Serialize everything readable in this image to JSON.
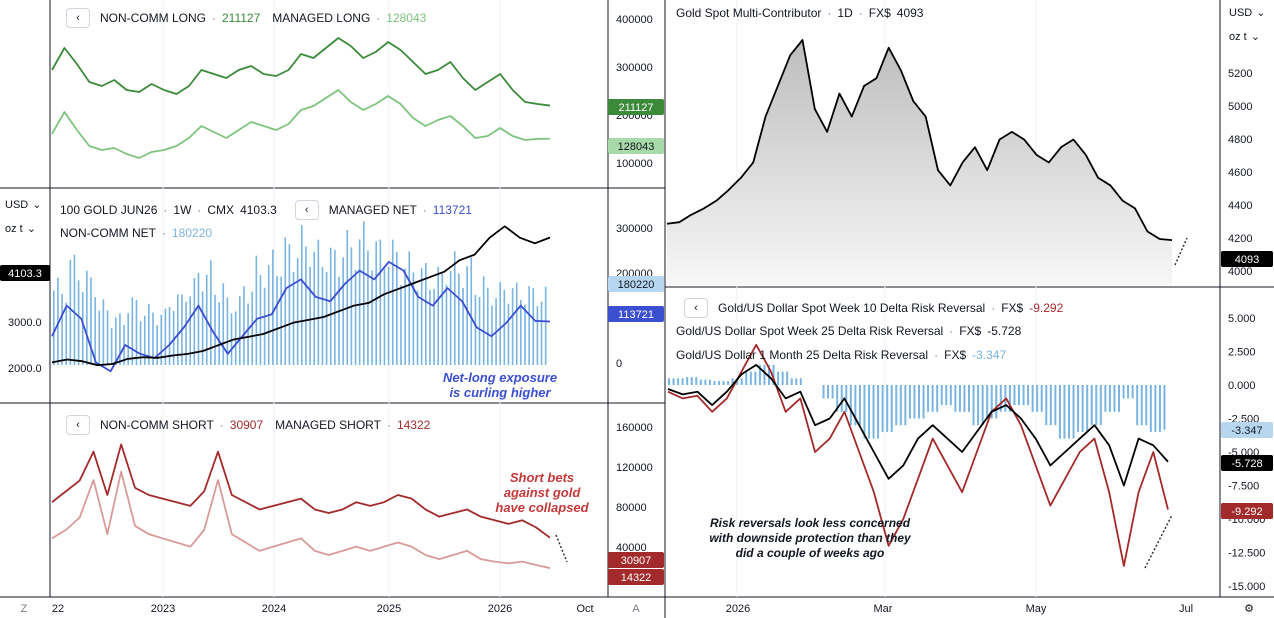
{
  "colors": {
    "dark_green": "#3a8a3a",
    "light_green": "#7dc47d",
    "blue": "#3b4fd1",
    "light_blue": "#7ab4e0",
    "dark_red": "#a32a2a",
    "light_red": "#d99a9a",
    "black": "#000000"
  },
  "units": {
    "currency": "USD",
    "weight": "oz t"
  },
  "panel_long": {
    "legend": {
      "label1": "NON-COMM LONG",
      "value1": "211127",
      "label2": "MANAGED LONG",
      "value2": "128043"
    },
    "badge1": "211127",
    "badge2": "128043",
    "axis_ticks": [
      "400000",
      "300000",
      "200000",
      "100000"
    ]
  },
  "panel_price": {
    "legend": {
      "symbol": "100 GOLD JUN26",
      "interval": "1W",
      "exchange": "CMX",
      "price": "4103.3",
      "label1": "MANAGED NET",
      "value1": "113721",
      "label2": "NON-COMM NET",
      "value2": "180220"
    },
    "price_badge": "4103.3",
    "badge1": "180220",
    "badge2": "113721",
    "left_ticks": [
      "3000.0",
      "2000.0"
    ],
    "right_ticks": [
      "300000",
      "200000",
      "100000",
      "0"
    ],
    "annotation_line1": "Net-long exposure",
    "annotation_line2": "is curling higher"
  },
  "panel_short": {
    "legend": {
      "label1": "NON-COMM SHORT",
      "value1": "30907",
      "label2": "MANAGED SHORT",
      "value2": "14322"
    },
    "badge1": "30907",
    "badge2": "14322",
    "axis_ticks": [
      "160000",
      "120000",
      "80000",
      "40000"
    ],
    "annotation_line1": "Short bets",
    "annotation_line2": "against gold",
    "annotation_line3": "have collapsed",
    "x_ticks": [
      "22",
      "2023",
      "2024",
      "2025",
      "2026",
      "Oct"
    ]
  },
  "panel_spot": {
    "legend": {
      "name": "Gold Spot Multi-Contributor",
      "interval": "1D",
      "exchange": "FX$",
      "value": "4093"
    },
    "badge": "4093",
    "axis_ticks": [
      "5200",
      "5000",
      "4800",
      "4600",
      "4400",
      "4200",
      "4000"
    ]
  },
  "panel_rr": {
    "legend1": {
      "name": "Gold/US Dollar Spot Week 10 Delta Risk Reversal",
      "exchange": "FX$",
      "value": "-9.292"
    },
    "legend2": {
      "name": "Gold/US Dollar Spot Week 25 Delta Risk Reversal",
      "exchange": "FX$",
      "value": "-5.728"
    },
    "legend3": {
      "name": "Gold/US Dollar 1 Month 25 Delta Risk Reversal",
      "exchange": "FX$",
      "value": "-3.347"
    },
    "badge1": "-3.347",
    "badge2": "-5.728",
    "badge3": "-9.292",
    "axis_ticks": [
      "5.000",
      "2.500",
      "0.000",
      "-2.500",
      "-5.000",
      "-7.500",
      "-10.000",
      "-12.500",
      "-15.000"
    ],
    "annotation_line1": "Risk reversals look less concerned",
    "annotation_line2": "with downside protection than they",
    "annotation_line3": "did a couple of weeks ago",
    "x_ticks": [
      "2026",
      "Mar",
      "May",
      "Jul"
    ]
  },
  "bottom_left_btn": "Z",
  "bottom_mid_btn": "A",
  "chart_data": [
    {
      "type": "line",
      "title": "NON-COMM LONG / MANAGED LONG",
      "series": [
        {
          "name": "NON-COMM LONG",
          "values": [
            300000,
            355000,
            315000,
            270000,
            260000,
            275000,
            250000,
            245000,
            265000,
            250000,
            240000,
            260000,
            300000,
            290000,
            280000,
            300000,
            310000,
            290000,
            285000,
            300000,
            340000,
            330000,
            355000,
            380000,
            360000,
            330000,
            345000,
            370000,
            350000,
            320000,
            290000,
            300000,
            320000,
            280000,
            250000,
            270000,
            290000,
            250000,
            220000,
            215000,
            211127
          ]
        },
        {
          "name": "MANAGED LONG",
          "values": [
            140000,
            195000,
            150000,
            110000,
            100000,
            105000,
            90000,
            80000,
            95000,
            100000,
            110000,
            130000,
            160000,
            145000,
            130000,
            150000,
            170000,
            160000,
            150000,
            165000,
            200000,
            210000,
            230000,
            250000,
            220000,
            200000,
            215000,
            235000,
            215000,
            180000,
            160000,
            175000,
            185000,
            160000,
            130000,
            135000,
            155000,
            135000,
            125000,
            128000,
            128043
          ]
        }
      ],
      "ylim": [
        50000,
        420000
      ]
    },
    {
      "type": "line",
      "title": "100 GOLD JUN26 · 1W · CMX",
      "series": [
        {
          "name": "100 GOLD JUN26",
          "values": [
            1900,
            1950,
            1920,
            1850,
            1870,
            1960,
            1990,
            1980,
            2020,
            2050,
            2100,
            2200,
            2300,
            2350,
            2400,
            2500,
            2600,
            2650,
            2700,
            2800,
            2900,
            2950,
            3100,
            3200,
            3300,
            3400,
            3500,
            3700,
            3800,
            4100,
            4300,
            4100,
            4000,
            4103.3
          ]
        },
        {
          "name": "MANAGED NET",
          "values": [
            80000,
            150000,
            120000,
            20000,
            0,
            60000,
            40000,
            30000,
            60000,
            100000,
            150000,
            90000,
            40000,
            80000,
            120000,
            130000,
            190000,
            210000,
            170000,
            160000,
            200000,
            230000,
            210000,
            250000,
            230000,
            170000,
            150000,
            190000,
            160000,
            100000,
            80000,
            110000,
            150000,
            115000,
            113721
          ]
        },
        {
          "name": "NON-COMM NET",
          "values": [
            200000,
            260000,
            220000,
            150000,
            120000,
            160000,
            140000,
            130000,
            170000,
            200000,
            240000,
            200000,
            160000,
            200000,
            250000,
            270000,
            300000,
            320000,
            290000,
            280000,
            310000,
            330000,
            300000,
            290000,
            260000,
            240000,
            230000,
            260000,
            250000,
            210000,
            190000,
            200000,
            190000,
            185000,
            180220
          ]
        }
      ],
      "ylim": [
        1500,
        4500
      ]
    },
    {
      "type": "line",
      "title": "NON-COMM SHORT / MANAGED SHORT",
      "series": [
        {
          "name": "NON-COMM SHORT",
          "values": [
            80000,
            95000,
            110000,
            150000,
            90000,
            160000,
            100000,
            90000,
            85000,
            80000,
            75000,
            95000,
            150000,
            90000,
            80000,
            70000,
            75000,
            80000,
            85000,
            70000,
            65000,
            70000,
            80000,
            75000,
            80000,
            90000,
            85000,
            70000,
            60000,
            65000,
            70000,
            60000,
            55000,
            50000,
            55000,
            45000,
            30907
          ]
        },
        {
          "name": "MANAGED SHORT",
          "values": [
            50000,
            60000,
            75000,
            120000,
            55000,
            130000,
            65000,
            55000,
            50000,
            45000,
            40000,
            60000,
            120000,
            55000,
            45000,
            35000,
            40000,
            45000,
            50000,
            35000,
            30000,
            35000,
            40000,
            35000,
            40000,
            45000,
            40000,
            30000,
            25000,
            30000,
            35000,
            25000,
            22000,
            20000,
            22000,
            18000,
            14322
          ]
        }
      ],
      "ylim": [
        0,
        180000
      ]
    },
    {
      "type": "area",
      "title": "Gold Spot Multi-Contributor · 1D · FX$",
      "series": [
        {
          "name": "Gold Spot Multi-Contributor",
          "values": [
            4200,
            4210,
            4260,
            4300,
            4350,
            4420,
            4500,
            4600,
            4900,
            5100,
            5300,
            5400,
            4950,
            4800,
            5050,
            4900,
            5100,
            5150,
            5350,
            5200,
            5000,
            4900,
            4550,
            4450,
            4600,
            4700,
            4550,
            4750,
            4800,
            4750,
            4650,
            4600,
            4700,
            4750,
            4650,
            4500,
            4450,
            4350,
            4300,
            4150,
            4100,
            4093
          ]
        }
      ],
      "ylim": [
        3950,
        5400
      ]
    },
    {
      "type": "line",
      "title": "Gold/US Dollar Risk Reversals",
      "series": [
        {
          "name": "Gold/US Dollar Spot Week 10 Delta Risk Reversal",
          "values": [
            -0.5,
            -1.0,
            -0.8,
            -2.0,
            -1.0,
            1.0,
            3.0,
            1.0,
            -2.0,
            -1.0,
            -5.0,
            -4.0,
            -2.0,
            -5.0,
            -8.0,
            -12.0,
            -10.0,
            -7.0,
            -4.0,
            -6.0,
            -8.0,
            -5.0,
            -2.0,
            -1.0,
            -3.0,
            -6.0,
            -9.0,
            -7.0,
            -5.0,
            -4.0,
            -8.0,
            -13.5,
            -8.0,
            -5.0,
            -9.292
          ]
        },
        {
          "name": "Gold/US Dollar Spot Week 25 Delta Risk Reversal",
          "values": [
            -0.3,
            -0.7,
            -0.5,
            -1.5,
            -0.5,
            0.8,
            1.5,
            0.5,
            -1.0,
            -0.5,
            -3.0,
            -2.5,
            -1.0,
            -3.0,
            -5.0,
            -7.0,
            -6.0,
            -4.0,
            -3.0,
            -4.0,
            -5.0,
            -3.5,
            -2.0,
            -1.5,
            -2.5,
            -4.0,
            -6.0,
            -5.0,
            -4.0,
            -3.0,
            -4.5,
            -7.5,
            -4.0,
            -4.5,
            -5.728
          ]
        },
        {
          "name": "Gold/US Dollar 1 Month 25 Delta Risk Reversal",
          "values": [
            0.5,
            0.6,
            0.4,
            0.3,
            0.5,
            1.0,
            1.5,
            1.0,
            0.5,
            0.0,
            -1.0,
            -2.0,
            -3.0,
            -4.0,
            -3.5,
            -3.0,
            -2.5,
            -2.0,
            -1.5,
            -2.0,
            -3.0,
            -2.5,
            -2.0,
            -1.5,
            -2.0,
            -3.0,
            -4.0,
            -3.5,
            -3.0,
            -2.0,
            -1.0,
            -3.0,
            -3.5,
            -3.347
          ]
        }
      ],
      "ylim": [
        -15,
        6
      ]
    }
  ]
}
